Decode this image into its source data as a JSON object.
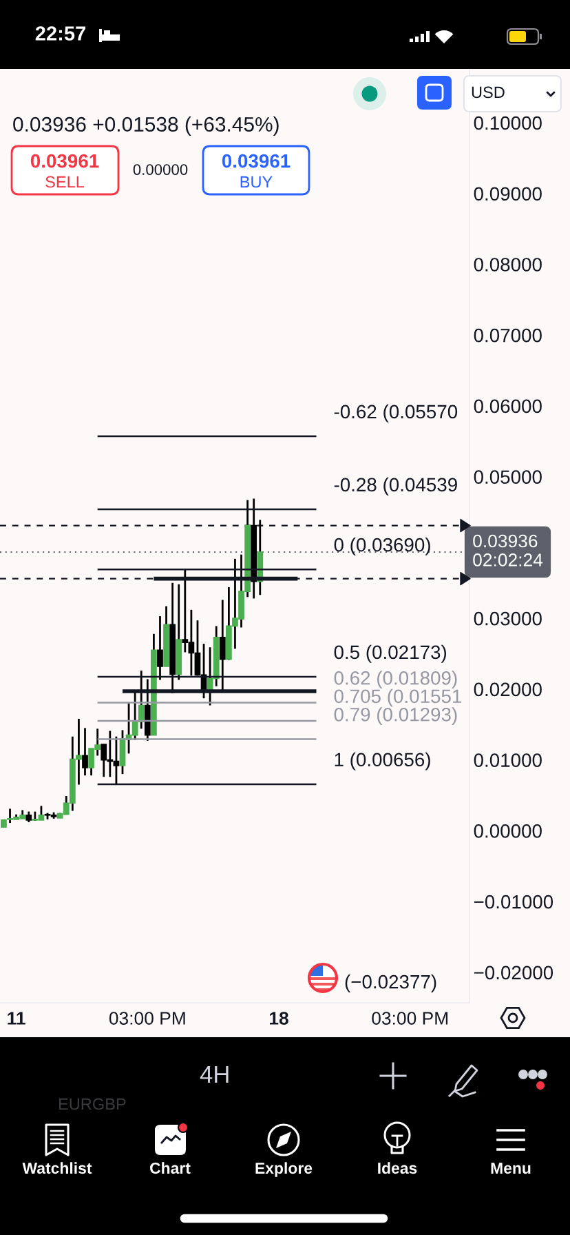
{
  "chart_data": {
    "type": "candlestick",
    "subtitle": "0.03936 +0.01538 (+63.45%)",
    "categories": [
      null,
      null,
      "11",
      null,
      null,
      null,
      null,
      null,
      null,
      null,
      null,
      null,
      null,
      null,
      null,
      null,
      null,
      null,
      null,
      null,
      null,
      null,
      null,
      "03:00 PM",
      null,
      null,
      null,
      null,
      null,
      null,
      null,
      null,
      null,
      null,
      null,
      null,
      null,
      null,
      null,
      null,
      null,
      null,
      null,
      null,
      "18",
      null,
      null,
      null,
      null,
      null,
      null,
      null,
      null,
      null,
      null,
      null,
      null,
      null,
      null,
      null,
      null,
      null,
      null,
      null,
      null,
      "03:00 PM",
      null,
      null,
      null,
      null,
      null,
      null,
      null,
      null,
      null
    ],
    "ohlc": [
      [
        0.0005,
        0.0016,
        0.0005,
        0.0015
      ],
      [
        0.0016,
        0.0031,
        0.0011,
        0.0017
      ],
      [
        0.0016,
        0.0023,
        0.0016,
        0.0019
      ],
      [
        0.0017,
        0.0029,
        0.0017,
        0.0022
      ],
      [
        0.0022,
        0.0027,
        0.0012,
        0.0015
      ],
      [
        0.0015,
        0.0027,
        0.0014,
        0.0016
      ],
      [
        0.0015,
        0.0035,
        0.0015,
        0.0022
      ],
      [
        0.0023,
        0.0025,
        0.0016,
        0.0022
      ],
      [
        0.0022,
        0.0026,
        0.0017,
        0.002
      ],
      [
        0.0018,
        0.0025,
        0.0018,
        0.0024
      ],
      [
        0.0023,
        0.0049,
        0.0023,
        0.0039
      ],
      [
        0.0039,
        0.0133,
        0.0028,
        0.0101
      ],
      [
        0.0101,
        0.0158,
        0.0065,
        0.0106
      ],
      [
        0.0106,
        0.0145,
        0.0078,
        0.0089
      ],
      [
        0.0089,
        0.0116,
        0.0078,
        0.0116
      ],
      [
        0.0115,
        0.0144,
        0.0106,
        0.0121
      ],
      [
        0.0122,
        0.0122,
        0.0076,
        0.01
      ],
      [
        0.01,
        0.0141,
        0.0076,
        0.0098
      ],
      [
        0.0098,
        0.0133,
        0.00656,
        0.0092
      ],
      [
        0.0092,
        0.0142,
        0.008,
        0.013
      ],
      [
        0.0129,
        0.018,
        0.0109,
        0.0135
      ],
      [
        0.0135,
        0.0196,
        0.0128,
        0.0154
      ],
      [
        0.0154,
        0.0226,
        0.0144,
        0.0177
      ],
      [
        0.0177,
        0.0214,
        0.0127,
        0.0135
      ],
      [
        0.0135,
        0.0278,
        0.0135,
        0.0255
      ],
      [
        0.0255,
        0.0303,
        0.0213,
        0.0232
      ],
      [
        0.0232,
        0.0317,
        0.0232,
        0.0291
      ],
      [
        0.0291,
        0.035,
        0.0194,
        0.0221
      ],
      [
        0.0221,
        0.0348,
        0.0213,
        0.027
      ],
      [
        0.027,
        0.0369,
        0.0252,
        0.0266
      ],
      [
        0.0266,
        0.0312,
        0.0219,
        0.0251
      ],
      [
        0.0251,
        0.0297,
        0.0219,
        0.022
      ],
      [
        0.022,
        0.0264,
        0.0187,
        0.0197
      ],
      [
        0.0198,
        0.0259,
        0.0177,
        0.0215
      ],
      [
        0.0215,
        0.0289,
        0.0204,
        0.0273
      ],
      [
        0.0273,
        0.0326,
        0.0198,
        0.0242
      ],
      [
        0.0242,
        0.0344,
        0.0241,
        0.0289
      ],
      [
        0.0289,
        0.0384,
        0.0257,
        0.03
      ],
      [
        0.0299,
        0.039,
        0.0287,
        0.0338
      ],
      [
        0.0338,
        0.0467,
        0.033,
        0.0431
      ],
      [
        0.0431,
        0.0469,
        0.0328,
        0.0352
      ],
      [
        0.0352,
        0.0439,
        0.0333,
        0.03936
      ],
      null,
      null,
      null,
      null,
      null,
      null,
      null,
      null,
      null,
      null,
      null,
      null,
      null,
      null,
      null,
      null,
      null,
      null,
      null,
      null,
      null,
      null,
      null,
      null,
      null,
      null,
      null,
      null,
      null,
      null,
      null,
      null,
      null
    ],
    "colors": [
      "#4caf50",
      "#4caf50",
      "#4caf50",
      "#4caf50",
      "#000000",
      "#4caf50",
      "#4caf50",
      "#000000",
      "#000000",
      "#4caf50",
      "#4caf50",
      "#4caf50",
      "#4caf50",
      "#000000",
      "#4caf50",
      "#4caf50",
      "#000000",
      "#000000",
      "#000000",
      "#4caf50",
      "#4caf50",
      "#4caf50",
      "#4caf50",
      "#000000",
      "#4caf50",
      "#000000",
      "#4caf50",
      "#000000",
      "#4caf50",
      "#000000",
      "#000000",
      "#000000",
      "#000000",
      "#4caf50",
      "#4caf50",
      "#000000",
      "#4caf50",
      "#4caf50",
      "#4caf50",
      "#4caf50",
      "#000000",
      "#4caf50",
      null,
      null,
      null,
      null,
      null,
      null,
      null,
      null,
      null,
      null,
      null,
      null,
      null,
      null,
      null,
      null,
      null,
      null,
      null,
      null,
      null,
      null,
      null,
      null,
      null,
      null,
      null,
      null,
      null,
      null,
      null,
      null,
      null
    ],
    "series": [
      {
        "type": "line",
        "name": "-0.62 (0.05570",
        "color": "#131722",
        "values": [
          null,
          null,
          null,
          null,
          null,
          null,
          null,
          null,
          null,
          null,
          null,
          null,
          null,
          null,
          null,
          0.0557,
          0.0557,
          0.0557,
          0.0557,
          0.0557,
          0.0557,
          0.0557,
          0.0557,
          0.0557,
          0.0557,
          0.0557,
          0.0557,
          0.0557,
          0.0557,
          0.0557,
          0.0557,
          0.0557,
          0.0557,
          0.0557,
          0.0557,
          0.0557,
          0.0557,
          0.0557,
          0.0557,
          0.0557,
          0.0557,
          0.0557,
          0.0557,
          0.0557,
          0.0557,
          0.0557,
          0.0557,
          0.0557,
          0.0557,
          0.0557,
          0.0557,
          null,
          null,
          null,
          null,
          null,
          null,
          null,
          null,
          null,
          null,
          null,
          null,
          null,
          null,
          null,
          null,
          null,
          null,
          null,
          null,
          null,
          null,
          null,
          null
        ]
      },
      {
        "type": "line",
        "name": "-0.28 (0.04539",
        "color": "#131722",
        "values": [
          null,
          null,
          null,
          null,
          null,
          null,
          null,
          null,
          null,
          null,
          null,
          null,
          null,
          null,
          null,
          0.04539,
          0.04539,
          0.04539,
          0.04539,
          0.04539,
          0.04539,
          0.04539,
          0.04539,
          0.04539,
          0.04539,
          0.04539,
          0.04539,
          0.04539,
          0.04539,
          0.04539,
          0.04539,
          0.04539,
          0.04539,
          0.04539,
          0.04539,
          0.04539,
          0.04539,
          0.04539,
          0.04539,
          0.04539,
          0.04539,
          0.04539,
          0.04539,
          0.04539,
          0.04539,
          0.04539,
          0.04539,
          0.04539,
          0.04539,
          0.04539,
          0.04539,
          null,
          null,
          null,
          null,
          null,
          null,
          null,
          null,
          null,
          null,
          null,
          null,
          null,
          null,
          null,
          null,
          null,
          null,
          null,
          null,
          null,
          null,
          null,
          null
        ]
      },
      {
        "type": "line",
        "name": "0 (0.03690)",
        "color": "#131722",
        "values": [
          null,
          null,
          null,
          null,
          null,
          null,
          null,
          null,
          null,
          null,
          null,
          null,
          null,
          null,
          null,
          0.0369,
          0.0369,
          0.0369,
          0.0369,
          0.0369,
          0.0369,
          0.0369,
          0.0369,
          0.0369,
          0.0369,
          0.0369,
          0.0369,
          0.0369,
          0.0369,
          0.0369,
          0.0369,
          0.0369,
          0.0369,
          0.0369,
          0.0369,
          0.0369,
          0.0369,
          0.0369,
          0.0369,
          0.0369,
          0.0369,
          0.0369,
          0.0369,
          0.0369,
          0.0369,
          0.0369,
          0.0369,
          0.0369,
          0.0369,
          0.0369,
          0.0369,
          null,
          null,
          null,
          null,
          null,
          null,
          null,
          null,
          null,
          null,
          null,
          null,
          null,
          null,
          null,
          null,
          null,
          null,
          null,
          null,
          null,
          null,
          null,
          null
        ]
      },
      {
        "type": "line",
        "name": "0.5 (0.02173)",
        "color": "#131722",
        "values": [
          null,
          null,
          null,
          null,
          null,
          null,
          null,
          null,
          null,
          null,
          null,
          null,
          null,
          null,
          null,
          0.02173,
          0.02173,
          0.02173,
          0.02173,
          0.02173,
          0.02173,
          0.02173,
          0.02173,
          0.02173,
          0.02173,
          0.02173,
          0.02173,
          0.02173,
          0.02173,
          0.02173,
          0.02173,
          0.02173,
          0.02173,
          0.02173,
          0.02173,
          0.02173,
          0.02173,
          0.02173,
          0.02173,
          0.02173,
          0.02173,
          0.02173,
          0.02173,
          0.02173,
          0.02173,
          0.02173,
          0.02173,
          0.02173,
          0.02173,
          0.02173,
          0.02173,
          null,
          null,
          null,
          null,
          null,
          null,
          null,
          null,
          null,
          null,
          null,
          null,
          null,
          null,
          null,
          null,
          null,
          null,
          null,
          null,
          null,
          null,
          null,
          null
        ]
      },
      {
        "type": "line",
        "name": "0.62 (0.01809)",
        "color": "#9598a1",
        "values": [
          null,
          null,
          null,
          null,
          null,
          null,
          null,
          null,
          null,
          null,
          null,
          null,
          null,
          null,
          null,
          0.01809,
          0.01809,
          0.01809,
          0.01809,
          0.01809,
          0.01809,
          0.01809,
          0.01809,
          0.01809,
          0.01809,
          0.01809,
          0.01809,
          0.01809,
          0.01809,
          0.01809,
          0.01809,
          0.01809,
          0.01809,
          0.01809,
          0.01809,
          0.01809,
          0.01809,
          0.01809,
          0.01809,
          0.01809,
          0.01809,
          0.01809,
          0.01809,
          0.01809,
          0.01809,
          0.01809,
          0.01809,
          0.01809,
          0.01809,
          0.01809,
          0.01809,
          null,
          null,
          null,
          null,
          null,
          null,
          null,
          null,
          null,
          null,
          null,
          null,
          null,
          null,
          null,
          null,
          null,
          null,
          null,
          null,
          null,
          null,
          null,
          null
        ]
      },
      {
        "type": "line",
        "name": "0.705 (0.01551",
        "color": "#9598a1",
        "values": [
          null,
          null,
          null,
          null,
          null,
          null,
          null,
          null,
          null,
          null,
          null,
          null,
          null,
          null,
          null,
          0.01551,
          0.01551,
          0.01551,
          0.01551,
          0.01551,
          0.01551,
          0.01551,
          0.01551,
          0.01551,
          0.01551,
          0.01551,
          0.01551,
          0.01551,
          0.01551,
          0.01551,
          0.01551,
          0.01551,
          0.01551,
          0.01551,
          0.01551,
          0.01551,
          0.01551,
          0.01551,
          0.01551,
          0.01551,
          0.01551,
          0.01551,
          0.01551,
          0.01551,
          0.01551,
          0.01551,
          0.01551,
          0.01551,
          0.01551,
          0.01551,
          0.01551,
          null,
          null,
          null,
          null,
          null,
          null,
          null,
          null,
          null,
          null,
          null,
          null,
          null,
          null,
          null,
          null,
          null,
          null,
          null,
          null,
          null,
          null,
          null,
          null
        ]
      },
      {
        "type": "line",
        "name": "0.79 (0.01293)",
        "color": "#9598a1",
        "values": [
          null,
          null,
          null,
          null,
          null,
          null,
          null,
          null,
          null,
          null,
          null,
          null,
          null,
          null,
          null,
          0.01293,
          0.01293,
          0.01293,
          0.01293,
          0.01293,
          0.01293,
          0.01293,
          0.01293,
          0.01293,
          0.01293,
          0.01293,
          0.01293,
          0.01293,
          0.01293,
          0.01293,
          0.01293,
          0.01293,
          0.01293,
          0.01293,
          0.01293,
          0.01293,
          0.01293,
          0.01293,
          0.01293,
          0.01293,
          0.01293,
          0.01293,
          0.01293,
          0.01293,
          0.01293,
          0.01293,
          0.01293,
          0.01293,
          0.01293,
          0.01293,
          0.01293,
          null,
          null,
          null,
          null,
          null,
          null,
          null,
          null,
          null,
          null,
          null,
          null,
          null,
          null,
          null,
          null,
          null,
          null,
          null,
          null,
          null,
          null,
          null,
          null
        ]
      },
      {
        "type": "line",
        "name": "1 (0.00656)",
        "color": "#131722",
        "values": [
          null,
          null,
          null,
          null,
          null,
          null,
          null,
          null,
          null,
          null,
          null,
          null,
          null,
          null,
          null,
          0.00656,
          0.00656,
          0.00656,
          0.00656,
          0.00656,
          0.00656,
          0.00656,
          0.00656,
          0.00656,
          0.00656,
          0.00656,
          0.00656,
          0.00656,
          0.00656,
          0.00656,
          0.00656,
          0.00656,
          0.00656,
          0.00656,
          0.00656,
          0.00656,
          0.00656,
          0.00656,
          0.00656,
          0.00656,
          0.00656,
          0.00656,
          0.00656,
          0.00656,
          0.00656,
          0.00656,
          0.00656,
          0.00656,
          0.00656,
          0.00656,
          0.00656,
          null,
          null,
          null,
          null,
          null,
          null,
          null,
          null,
          null,
          null,
          null,
          null,
          null,
          null,
          null,
          null,
          null,
          null,
          null,
          null,
          null,
          null,
          null,
          null
        ]
      },
      {
        "type": "line",
        "color": "#131722",
        "values": [
          null,
          null,
          null,
          null,
          null,
          null,
          null,
          null,
          null,
          null,
          null,
          null,
          null,
          null,
          null,
          null,
          null,
          null,
          null,
          0.0197,
          0.0197,
          0.0197,
          0.0197,
          0.0197,
          0.0197,
          0.0197,
          0.0197,
          0.0197,
          0.0197,
          0.0197,
          0.0197,
          0.0197,
          0.0197,
          0.0197,
          0.0197,
          0.0197,
          0.0197,
          0.0197,
          0.0197,
          0.0197,
          0.0197,
          0.0197,
          0.0197,
          0.0197,
          0.0197,
          0.0197,
          0.0197,
          0.0197,
          0.0197,
          0.0197,
          0.0197,
          null,
          null,
          null,
          null,
          null,
          null,
          null,
          null,
          null,
          null,
          null,
          null,
          null,
          null,
          null,
          null,
          null,
          null,
          null,
          null,
          null,
          null,
          null,
          null
        ]
      },
      {
        "type": "line",
        "color": "#131722",
        "values": [
          null,
          null,
          null,
          null,
          null,
          null,
          null,
          null,
          null,
          null,
          null,
          null,
          null,
          null,
          null,
          null,
          null,
          null,
          null,
          null,
          null,
          null,
          null,
          null,
          0.0356,
          0.0356,
          0.0356,
          0.0356,
          0.0356,
          0.0356,
          0.0356,
          0.0356,
          0.0356,
          0.0356,
          0.0356,
          0.0356,
          0.0356,
          0.0356,
          0.0356,
          0.0356,
          0.0356,
          0.0356,
          0.0356,
          0.0356,
          0.0356,
          0.0356,
          0.0356,
          0.0356,
          null,
          null,
          null,
          null,
          null,
          null,
          null,
          null,
          null,
          null,
          null,
          null,
          null,
          null,
          null,
          null,
          null,
          null,
          null,
          null,
          null,
          null,
          null,
          null,
          null,
          null,
          null
        ]
      }
    ],
    "ref_lines": [
      {
        "axis": "y",
        "value": 0.0431,
        "line_style": "dashed",
        "color": "#131722"
      },
      {
        "axis": "y",
        "value": 0.0356,
        "line_style": "dashed",
        "color": "#131722"
      },
      {
        "axis": "y",
        "value": 0.03936,
        "line_style": "dotted",
        "color": "#5d606b",
        "label": "0.03936\n02:02:24"
      }
    ],
    "ylim": [
      -0.0243,
      0.1073
    ],
    "yticks": [
      {
        "value": 0.1,
        "label": "0.10000"
      },
      {
        "value": 0.09,
        "label": "0.09000"
      },
      {
        "value": 0.08,
        "label": "0.08000"
      },
      {
        "value": 0.07,
        "label": "0.07000"
      },
      {
        "value": 0.06,
        "label": "0.06000"
      },
      {
        "value": 0.05,
        "label": "0.05000"
      },
      {
        "value": 0.03,
        "label": "0.03000"
      },
      {
        "value": 0.02,
        "label": "0.02000"
      },
      {
        "value": 0.01,
        "label": "0.01000"
      },
      {
        "value": 0,
        "label": "0.00000"
      },
      {
        "value": -0.01,
        "label": "−0.01000"
      },
      {
        "value": -0.02,
        "label": "−0.02000"
      }
    ],
    "grid": false,
    "legend": false,
    "annotations": [
      "22:57",
      "0.03961",
      "SELL",
      "0.00000",
      "0.03961",
      "BUY",
      "USD",
      "EURGBP",
      "4H",
      "Watchlist",
      "Chart",
      "Explore",
      "Ideas",
      "Menu",
      "(−0.02377)"
    ]
  }
}
